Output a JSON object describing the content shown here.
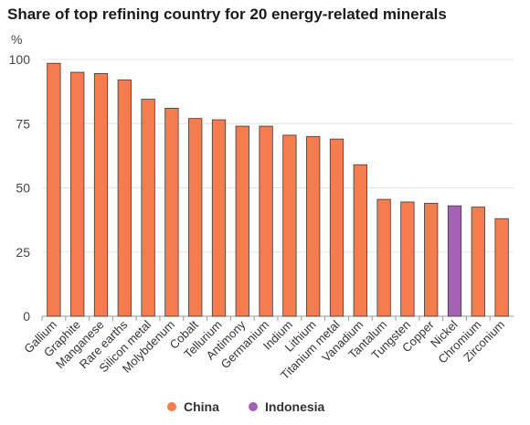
{
  "chart_data": {
    "type": "bar",
    "title": "Share of top refining country for 20 energy-related minerals",
    "ylabel": "%",
    "xlabel": "",
    "ylim": [
      0,
      100
    ],
    "yticks": [
      0,
      25,
      50,
      75,
      100
    ],
    "grid": true,
    "legend_position": "bottom",
    "categories": [
      "Gallium",
      "Graphite",
      "Manganese",
      "Rare earths",
      "Silicon metal",
      "Molybdenum",
      "Cobalt",
      "Tellurium",
      "Antimony",
      "Germanium",
      "Indium",
      "Lithium",
      "Titanium metal",
      "Vanadium",
      "Tantalum",
      "Tungsten",
      "Copper",
      "Nickel",
      "Chromium",
      "Zirconium"
    ],
    "values": [
      98.5,
      95,
      94.5,
      92,
      84.5,
      81,
      77,
      76.5,
      74,
      74,
      70.5,
      70,
      69,
      59,
      45.5,
      44.5,
      44,
      43,
      42.5,
      38
    ],
    "bar_country": [
      "China",
      "China",
      "China",
      "China",
      "China",
      "China",
      "China",
      "China",
      "China",
      "China",
      "China",
      "China",
      "China",
      "China",
      "China",
      "China",
      "China",
      "Indonesia",
      "China",
      "China"
    ],
    "legend": [
      {
        "name": "China",
        "color": "#f47c4f"
      },
      {
        "name": "Indonesia",
        "color": "#a462b5"
      }
    ]
  }
}
